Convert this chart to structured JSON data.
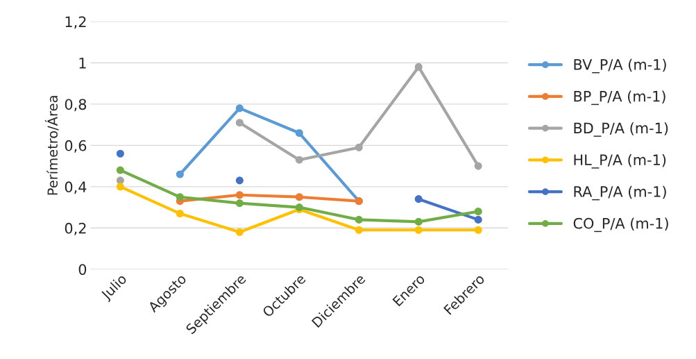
{
  "chart_data": {
    "type": "line",
    "ylabel": "Perímetro/Área",
    "categories": [
      "Julio",
      "Agosto",
      "Septiembre",
      "Octubre",
      "Diciembre",
      "Enero",
      "Febrero"
    ],
    "series": [
      {
        "name": "BV_P/A (m-1)",
        "color": "#5b9bd5",
        "values": [
          null,
          0.46,
          0.78,
          0.66,
          0.33,
          null,
          null
        ]
      },
      {
        "name": "BP_P/A (m-1)",
        "color": "#ed7d31",
        "values": [
          null,
          0.33,
          0.36,
          0.35,
          0.33,
          null,
          null
        ]
      },
      {
        "name": "BD_P/A (m-1)",
        "color": "#a5a5a5",
        "values": [
          0.43,
          null,
          0.71,
          0.53,
          0.59,
          0.98,
          0.5
        ]
      },
      {
        "name": "HL_P/A (m-1)",
        "color": "#ffc000",
        "values": [
          0.4,
          0.27,
          0.18,
          0.29,
          0.19,
          0.19,
          0.19
        ]
      },
      {
        "name": "RA_P/A (m-1)",
        "color": "#4472c4",
        "values": [
          0.56,
          null,
          0.43,
          null,
          null,
          0.34,
          0.24
        ]
      },
      {
        "name": "CO_P/A (m-1)",
        "color": "#70ad47",
        "values": [
          0.48,
          0.35,
          0.32,
          0.3,
          0.24,
          0.23,
          0.28
        ]
      }
    ],
    "ylim": [
      0,
      1.2
    ],
    "yticks": [
      {
        "value": 0,
        "label": "0"
      },
      {
        "value": 0.2,
        "label": "0,2"
      },
      {
        "value": 0.4,
        "label": "0,4"
      },
      {
        "value": 0.6,
        "label": "0,6"
      },
      {
        "value": 0.8,
        "label": "0,8"
      },
      {
        "value": 1,
        "label": "1"
      },
      {
        "value": 1.2,
        "label": "1,2"
      }
    ],
    "grid": "y",
    "legend": "right",
    "marker": "circle",
    "line_style": "solid"
  }
}
